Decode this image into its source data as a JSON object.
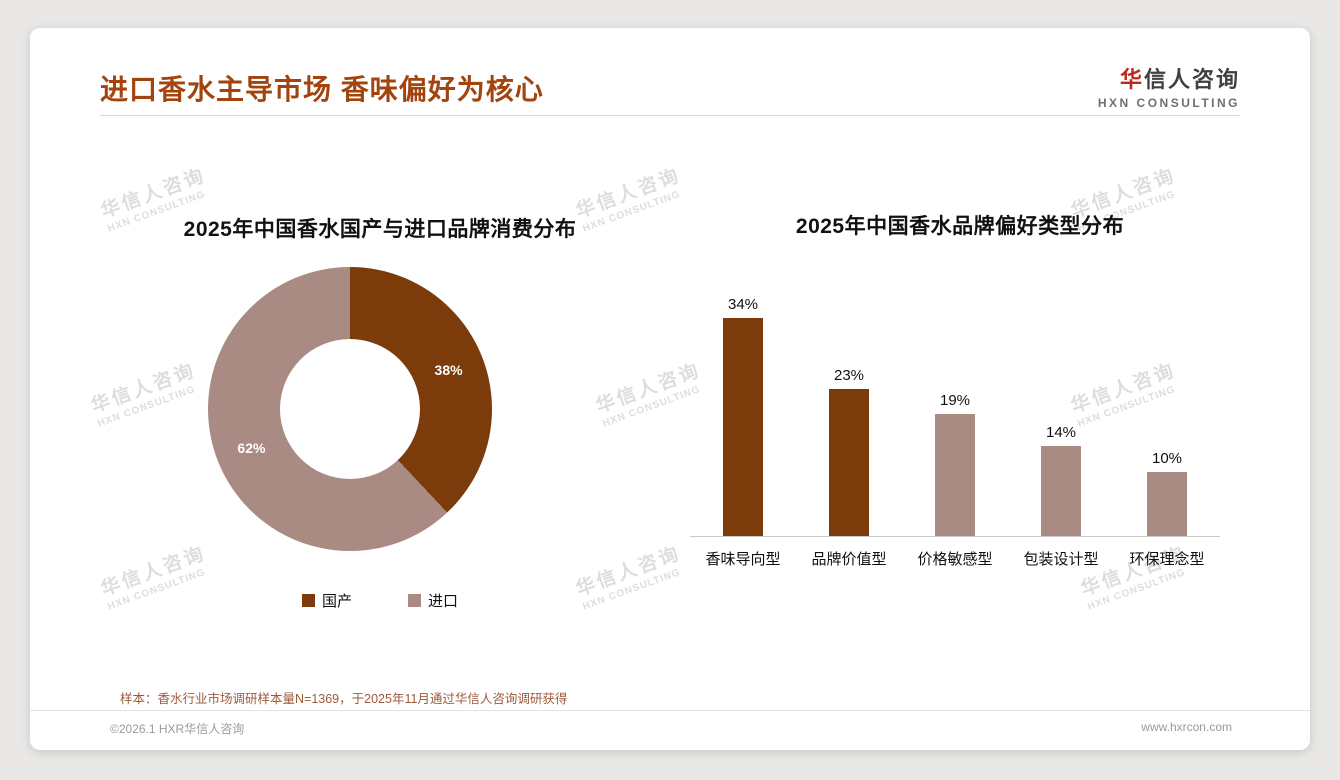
{
  "page": {
    "title": "进口香水主导市场 香味偏好为核心",
    "logo": {
      "zh_first": "华",
      "zh_rest": "信人咨询",
      "en": "HXN CONSULTING"
    },
    "watermark": {
      "zh": "华信人咨询",
      "en": "HXN CONSULTING"
    },
    "sample_note": "样本：香水行业市场调研样本量N=1369，于2025年11月通过华信人咨询调研获得",
    "footer": {
      "copyright": "©2026.1 HXR华信人咨询",
      "website": "www.hxrcon.com"
    }
  },
  "colors": {
    "title": "#A3430E",
    "accent_dark": "#7B3B0B",
    "accent_light": "#A98B83",
    "note": "#9C5A3C"
  },
  "chart_data": [
    {
      "type": "pie",
      "donut": true,
      "title": "2025年中国香水国产与进口品牌消费分布",
      "labels": [
        "国产",
        "进口"
      ],
      "values": [
        38,
        62
      ],
      "value_labels": [
        "38%",
        "62%"
      ],
      "colors": [
        "#7B3B0B",
        "#A98B83"
      ],
      "legend_position": "bottom"
    },
    {
      "type": "bar",
      "title": "2025年中国香水品牌偏好类型分布",
      "categories": [
        "香味导向型",
        "品牌价值型",
        "价格敏感型",
        "包装设计型",
        "环保理念型"
      ],
      "values": [
        34,
        23,
        19,
        14,
        10
      ],
      "value_labels": [
        "34%",
        "23%",
        "19%",
        "14%",
        "10%"
      ],
      "colors": [
        "#7B3B0B",
        "#7B3B0B",
        "#A98B83",
        "#A98B83",
        "#A98B83"
      ],
      "ylim": [
        0,
        40
      ],
      "grid": false,
      "xlabel": "",
      "ylabel": ""
    }
  ]
}
